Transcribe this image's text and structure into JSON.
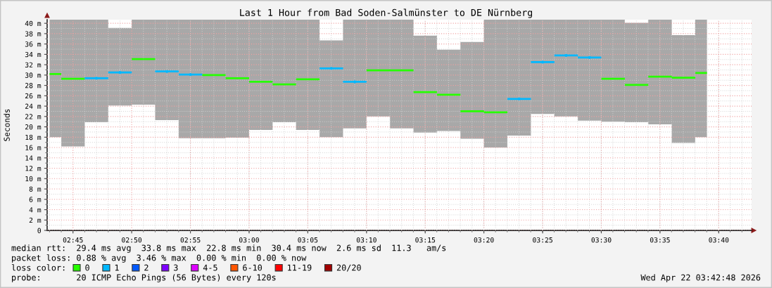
{
  "chart_data": {
    "type": "step",
    "title": "Last 1 Hour from Bad Soden-Salmünster to DE Nürnberg",
    "ylabel": "Seconds",
    "x": [
      2.7167,
      2.75,
      2.7833,
      2.8167,
      2.85,
      2.8833,
      2.9167,
      2.95,
      2.9833,
      3.0167,
      3.05,
      3.0833,
      3.1167,
      3.15,
      3.1833,
      3.2167,
      3.25,
      3.2833,
      3.3167,
      3.35,
      3.3833,
      3.4167,
      3.45,
      3.4833,
      3.5167,
      3.55,
      3.5833,
      3.6167,
      3.65
    ],
    "xlim": [
      2.7133,
      3.7133
    ],
    "xticks": [
      {
        "value": 2.75,
        "label": "02:45"
      },
      {
        "value": 2.8333,
        "label": "02:50"
      },
      {
        "value": 2.9167,
        "label": "02:55"
      },
      {
        "value": 3,
        "label": "03:00"
      },
      {
        "value": 3.0833,
        "label": "03:05"
      },
      {
        "value": 3.1667,
        "label": "03:10"
      },
      {
        "value": 3.25,
        "label": "03:15"
      },
      {
        "value": 3.3333,
        "label": "03:20"
      },
      {
        "value": 3.4167,
        "label": "03:25"
      },
      {
        "value": 3.5,
        "label": "03:30"
      },
      {
        "value": 3.5833,
        "label": "03:35"
      },
      {
        "value": 3.6667,
        "label": "03:40"
      }
    ],
    "ylim": [
      0,
      40.7
    ],
    "yticks": [
      0,
      {
        "value": 2,
        "label": "2 m"
      },
      {
        "value": 4,
        "label": "4 m"
      },
      {
        "value": 6,
        "label": "6 m"
      },
      {
        "value": 8,
        "label": "8 m"
      },
      {
        "value": 10,
        "label": "10 m"
      },
      {
        "value": 12,
        "label": "12 m"
      },
      {
        "value": 14,
        "label": "14 m"
      },
      {
        "value": 16,
        "label": "16 m"
      },
      {
        "value": 18,
        "label": "18 m"
      },
      {
        "value": 20,
        "label": "20 m"
      },
      {
        "value": 22,
        "label": "22 m"
      },
      {
        "value": 24,
        "label": "24 m"
      },
      {
        "value": 26,
        "label": "26 m"
      },
      {
        "value": 28,
        "label": "28 m"
      },
      {
        "value": 30,
        "label": "30 m"
      },
      {
        "value": 32,
        "label": "32 m"
      },
      {
        "value": 34,
        "label": "34 m"
      },
      {
        "value": 36,
        "label": "36 m"
      },
      {
        "value": 38,
        "label": "38 m"
      },
      {
        "value": 40,
        "label": "40 m"
      }
    ],
    "grid": true,
    "legend": "bottom",
    "legend_title": "loss color:",
    "annotations": [
      "median rtt:  29.4 ms avg  33.8 ms max  22.8 ms min  30.4 ms now  2.6 ms sd  11.3   am/s",
      "packet loss: 0.88 % avg  3.46 % max  0.00 % min  0.00 % now",
      "probe:       20 ICMP Echo Pings (56 Bytes) every 120s",
      "Wed Apr 22 03:42:48 2026"
    ],
    "series": [
      {
        "name": "0",
        "color": "#26ff00",
        "values": [
          30.2,
          29.3,
          null,
          null,
          33.1,
          null,
          null,
          30.0,
          29.4,
          28.7,
          28.2,
          29.2,
          null,
          null,
          30.9,
          30.9,
          26.7,
          26.2,
          23.0,
          22.8,
          null,
          null,
          null,
          null,
          29.3,
          28.1,
          29.7,
          29.5,
          30.4
        ],
        "lower": [
          18.0,
          16.2,
          20.9,
          24.1,
          24.3,
          21.3,
          17.8,
          17.8,
          17.9,
          19.4,
          20.9,
          19.4,
          18.0,
          19.7,
          22.0,
          19.7,
          18.9,
          19.2,
          17.7,
          16.0,
          18.3,
          22.5,
          22.0,
          21.2,
          21.0,
          20.9,
          20.5,
          16.9,
          18.0
        ],
        "upper": [
          40.7,
          40.7,
          40.7,
          39.1,
          40.7,
          40.7,
          40.7,
          40.7,
          40.7,
          40.7,
          40.7,
          40.7,
          36.7,
          40.7,
          40.7,
          40.7,
          37.6,
          34.9,
          36.4,
          40.7,
          40.7,
          40.7,
          40.7,
          40.7,
          40.7,
          40.1,
          40.7,
          37.7,
          40.7
        ]
      },
      {
        "name": "1",
        "type": "scatter",
        "color": "#00b8ff",
        "values": [
          null,
          null,
          29.4,
          30.5,
          null,
          30.7,
          30.1,
          null,
          null,
          null,
          null,
          null,
          31.3,
          28.7,
          null,
          null,
          null,
          null,
          null,
          null,
          25.4,
          32.5,
          33.8,
          33.4,
          null,
          null,
          null,
          null,
          null
        ],
        "xerrors": [
          null,
          null,
          0.0167,
          0.0167,
          null,
          0.0167,
          0.0167,
          null,
          null,
          null,
          null,
          null,
          0.0167,
          0.0167,
          null,
          null,
          null,
          null,
          null,
          null,
          0.0167,
          0.0167,
          0.0167,
          0.0167,
          null,
          null,
          null,
          null,
          null
        ]
      },
      {
        "name": "2",
        "color": "#0059ff",
        "values": [
          null,
          null,
          null,
          null,
          null,
          null,
          null,
          null,
          null,
          null,
          null,
          null,
          null,
          null,
          null,
          null,
          null,
          null,
          null,
          null,
          null,
          null,
          null,
          null,
          null,
          null,
          null,
          null,
          null
        ]
      },
      {
        "name": "3",
        "color": "#7e00ff",
        "values": [
          null,
          null,
          null,
          null,
          null,
          null,
          null,
          null,
          null,
          null,
          null,
          null,
          null,
          null,
          null,
          null,
          null,
          null,
          null,
          null,
          null,
          null,
          null,
          null,
          null,
          null,
          null,
          null,
          null
        ]
      },
      {
        "name": "4-5",
        "color": "#dd00ff",
        "values": [
          null,
          null,
          null,
          null,
          null,
          null,
          null,
          null,
          null,
          null,
          null,
          null,
          null,
          null,
          null,
          null,
          null,
          null,
          null,
          null,
          null,
          null,
          null,
          null,
          null,
          null,
          null,
          null,
          null
        ]
      },
      {
        "name": "6-10",
        "color": "#ff5500",
        "values": [
          null,
          null,
          null,
          null,
          null,
          null,
          null,
          null,
          null,
          null,
          null,
          null,
          null,
          null,
          null,
          null,
          null,
          null,
          null,
          null,
          null,
          null,
          null,
          null,
          null,
          null,
          null,
          null,
          null
        ]
      },
      {
        "name": "11-19",
        "color": "#ff0000",
        "values": [
          null,
          null,
          null,
          null,
          null,
          null,
          null,
          null,
          null,
          null,
          null,
          null,
          null,
          null,
          null,
          null,
          null,
          null,
          null,
          null,
          null,
          null,
          null,
          null,
          null,
          null,
          null,
          null,
          null
        ]
      },
      {
        "name": "20/20",
        "color": "#a10000",
        "values": [
          null,
          null,
          null,
          null,
          null,
          null,
          null,
          null,
          null,
          null,
          null,
          null,
          null,
          null,
          null,
          null,
          null,
          null,
          null,
          null,
          null,
          null,
          null,
          null,
          null,
          null,
          null,
          null,
          null
        ]
      }
    ]
  }
}
